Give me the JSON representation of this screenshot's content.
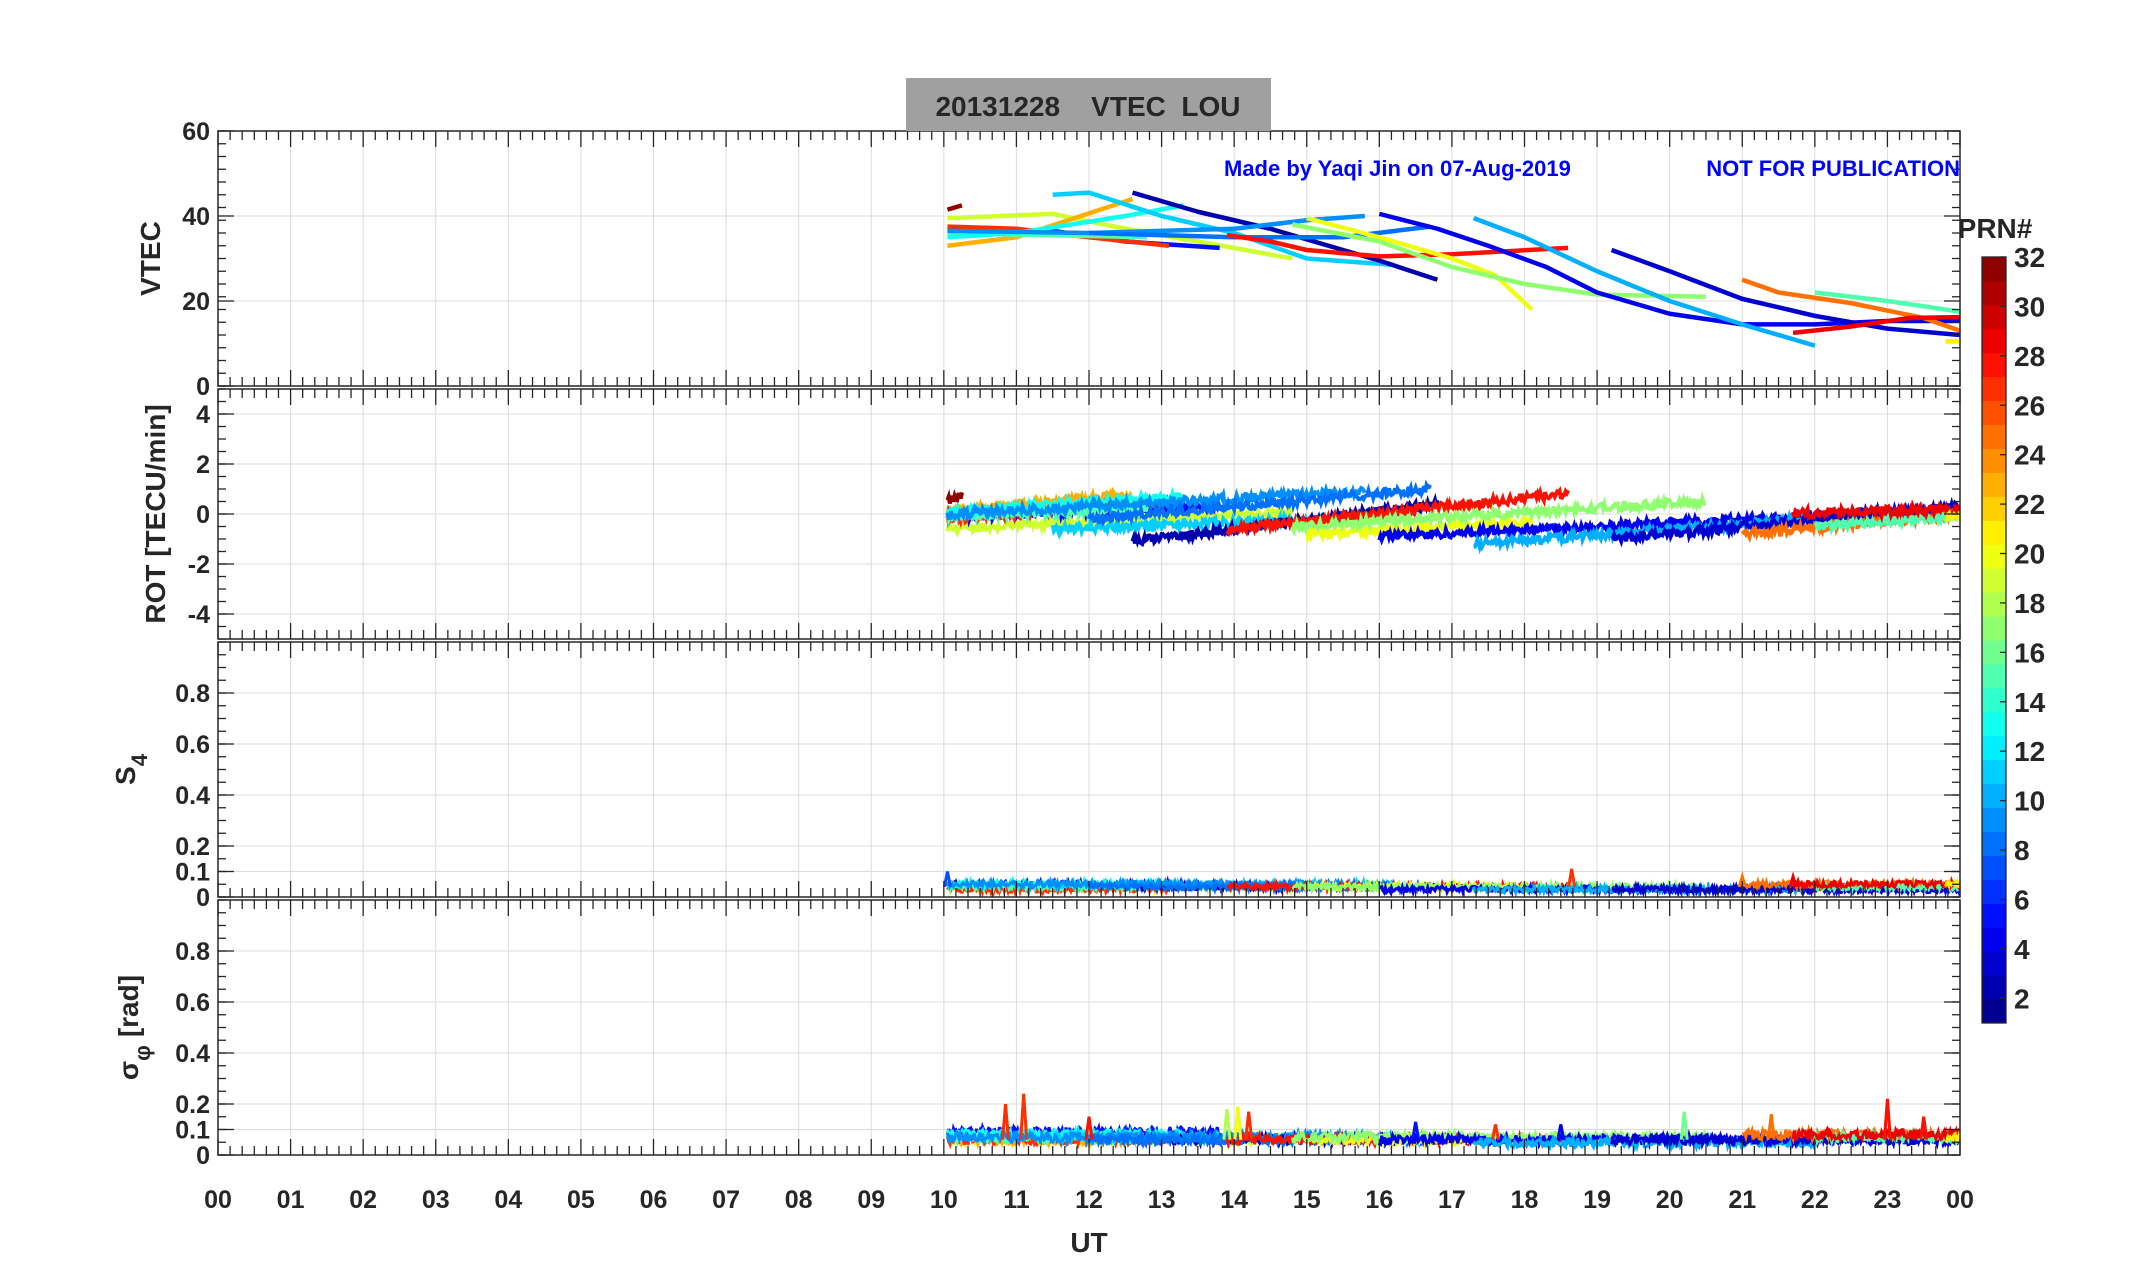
{
  "chart_data": {
    "type": "line",
    "title": "20131228    VTEC  LOU",
    "annotation_left": "Made by Yaqi Jin on 07-Aug-2019",
    "annotation_right": "NOT FOR PUBLICATION",
    "xlabel": "UT",
    "xlim": [
      0,
      24
    ],
    "xticks": [
      "00",
      "01",
      "02",
      "03",
      "04",
      "05",
      "06",
      "07",
      "08",
      "09",
      "10",
      "11",
      "12",
      "13",
      "14",
      "15",
      "16",
      "17",
      "18",
      "19",
      "20",
      "21",
      "22",
      "23",
      "00"
    ],
    "colorbar": {
      "label": "PRN#",
      "range": [
        1,
        32
      ],
      "ticks": [
        "2",
        "4",
        "6",
        "8",
        "10",
        "12",
        "14",
        "16",
        "18",
        "20",
        "22",
        "24",
        "26",
        "28",
        "30",
        "32"
      ],
      "colormap": "jet"
    },
    "panels": [
      {
        "ylabel": "VTEC",
        "ylim": [
          0,
          60
        ],
        "yticks": [
          "0",
          "20",
          "40",
          "60"
        ],
        "ytick_values": [
          0,
          20,
          40,
          60
        ]
      },
      {
        "ylabel": "ROT [TECU/min]",
        "ylim": [
          -5,
          5
        ],
        "yticks": [
          "-4",
          "-2",
          "0",
          "2",
          "4"
        ],
        "ytick_values": [
          -4,
          -2,
          0,
          2,
          4
        ]
      },
      {
        "ylabel": "S",
        "ylabel_sub": "4",
        "ylim": [
          0,
          1
        ],
        "yticks": [
          "0",
          "0.1",
          "0.2",
          "0.4",
          "0.6",
          "0.8"
        ],
        "ytick_values": [
          0,
          0.1,
          0.2,
          0.4,
          0.6,
          0.8
        ]
      },
      {
        "ylabel": "σ",
        "ylabel_sub": "φ",
        "ylabel_unit": "[rad]",
        "ylim": [
          0,
          1
        ],
        "yticks": [
          "0",
          "0.1",
          "0.2",
          "0.4",
          "0.6",
          "0.8"
        ],
        "ytick_values": [
          0,
          0.1,
          0.2,
          0.4,
          0.6,
          0.8
        ]
      }
    ],
    "series": [
      {
        "prn": 32,
        "t": [
          10.05,
          10.25
        ],
        "vtec": [
          41.5,
          42.5
        ],
        "rot": [
          0.5,
          0.7
        ],
        "s4": 0.05,
        "sigma": 0.08
      },
      {
        "prn": 19,
        "t": [
          10.05,
          11.5,
          12.5,
          13.5,
          14.8
        ],
        "vtec": [
          39.5,
          40.5,
          37,
          34,
          30
        ],
        "rot": [
          -0.6,
          0.1
        ],
        "s4": 0.04,
        "sigma": 0.06
      },
      {
        "prn": 23,
        "t": [
          10.05,
          11,
          12.6
        ],
        "vtec": [
          33,
          35,
          44
        ],
        "rot": [
          0.1,
          0.8
        ],
        "s4": 0.04,
        "sigma": 0.06
      },
      {
        "prn": 5,
        "t": [
          10.05,
          11.5,
          12.5,
          13.8
        ],
        "vtec": [
          37,
          36.5,
          34,
          32.5
        ],
        "rot": [
          -0.1,
          0.3
        ],
        "s4": 0.05,
        "sigma": 0.09
      },
      {
        "prn": 27,
        "t": [
          10.05,
          11,
          12,
          13.1
        ],
        "vtec": [
          37.5,
          37,
          35,
          33
        ],
        "rot": [
          -0.2,
          0.5
        ],
        "s4": 0.03,
        "sigma": 0.06
      },
      {
        "prn": 15,
        "t": [
          10.05,
          12.8
        ],
        "vtec": [
          36,
          35
        ],
        "rot": [
          -0.1,
          0.2
        ],
        "s4": 0.04,
        "sigma": 0.07
      },
      {
        "prn": 13,
        "t": [
          10.05,
          11,
          12.5,
          13.3
        ],
        "vtec": [
          35,
          36,
          40,
          42.5
        ],
        "rot": [
          0.1,
          0.7
        ],
        "s4": 0.05,
        "sigma": 0.08
      },
      {
        "prn": 11,
        "t": [
          11.5,
          12,
          13,
          14,
          15,
          16.2
        ],
        "vtec": [
          45,
          45.5,
          40,
          36,
          30,
          28.5
        ],
        "rot": [
          -0.6,
          -0.1
        ],
        "s4": 0.05,
        "sigma": 0.07
      },
      {
        "prn": 2,
        "t": [
          12.6,
          13.5,
          14.5,
          15.5,
          16,
          16.8
        ],
        "vtec": [
          45.5,
          41,
          37,
          32,
          29.5,
          25
        ],
        "rot": [
          -1.1,
          0.4
        ],
        "s4": 0.04,
        "sigma": 0.06
      },
      {
        "prn": 9,
        "t": [
          10.05,
          12,
          14,
          15,
          15.8
        ],
        "vtec": [
          36.5,
          36,
          37,
          39,
          40
        ],
        "rot": [
          0.0,
          0.9
        ],
        "s4": 0.05,
        "sigma": 0.07
      },
      {
        "prn": 8,
        "t": [
          12,
          14,
          15.5,
          16.7
        ],
        "vtec": [
          36,
          35,
          35,
          37.5
        ],
        "rot": [
          -0.2,
          1.0
        ],
        "s4": 0.04,
        "sigma": 0.06
      },
      {
        "prn": 28,
        "t": [
          13.9,
          14.5,
          15,
          16,
          17,
          18.6
        ],
        "vtec": [
          35.5,
          34,
          32,
          30.5,
          31,
          32.5
        ],
        "rot": [
          -0.6,
          0.8
        ],
        "s4": 0.04,
        "sigma": 0.06
      },
      {
        "prn": 20,
        "t": [
          15,
          16,
          17,
          17.6,
          18.1
        ],
        "vtec": [
          39.5,
          35,
          30,
          26,
          18
        ],
        "rot": [
          -0.8,
          -0.3
        ],
        "s4": 0.04,
        "sigma": 0.06
      },
      {
        "prn": 17,
        "t": [
          14.8,
          16,
          17,
          18,
          19,
          20.5
        ],
        "vtec": [
          38,
          34,
          28,
          24,
          21.5,
          21
        ],
        "rot": [
          -0.5,
          0.5
        ],
        "s4": 0.04,
        "sigma": 0.07
      },
      {
        "prn": 4,
        "t": [
          16,
          16.8,
          17.5,
          18.3,
          19,
          20,
          21,
          22,
          23,
          24
        ],
        "vtec": [
          40.5,
          37,
          33,
          28,
          22,
          17,
          14.5,
          14.5,
          15.3,
          15.3
        ],
        "rot": [
          -0.9,
          0.2
        ],
        "s4": 0.03,
        "sigma": 0.06
      },
      {
        "prn": 10,
        "t": [
          17.3,
          18,
          19,
          20,
          21,
          22
        ],
        "vtec": [
          39.5,
          35,
          27,
          20,
          14.5,
          9.5
        ],
        "rot": [
          -1.2,
          -0.2
        ],
        "s4": 0.03,
        "sigma": 0.05
      },
      {
        "prn": 3,
        "t": [
          19.2,
          20,
          21,
          22,
          23,
          24
        ],
        "vtec": [
          32,
          27,
          20.5,
          16.5,
          13.5,
          12
        ],
        "rot": [
          -1.0,
          0.3
        ],
        "s4": 0.03,
        "sigma": 0.06
      },
      {
        "prn": 25,
        "t": [
          21,
          21.5,
          22.5,
          23.5,
          24
        ],
        "vtec": [
          25,
          22,
          19.5,
          16,
          13
        ],
        "rot": [
          -0.8,
          0.0
        ],
        "s4": 0.05,
        "sigma": 0.08
      },
      {
        "prn": 15,
        "t": [
          22,
          23,
          24
        ],
        "vtec": [
          22,
          20,
          17.5
        ],
        "rot": [
          -0.5,
          -0.1
        ],
        "s4": 0.04,
        "sigma": 0.07
      },
      {
        "prn": 29,
        "t": [
          21.7,
          22.5,
          23.3,
          24
        ],
        "vtec": [
          12.5,
          14,
          16,
          16.2
        ],
        "rot": [
          0.0,
          0.2
        ],
        "s4": 0.05,
        "sigma": 0.08
      },
      {
        "prn": 21,
        "t": [
          23.8,
          24
        ],
        "vtec": [
          10.5,
          10.5
        ],
        "rot": [
          -0.1,
          0.0
        ],
        "s4": 0.05,
        "sigma": 0.07
      }
    ],
    "sigma_spikes": [
      {
        "t": 10.85,
        "value": 0.2,
        "prn": 27
      },
      {
        "t": 11.1,
        "value": 0.24,
        "prn": 27
      },
      {
        "t": 12.0,
        "value": 0.15,
        "prn": 28
      },
      {
        "t": 13.9,
        "value": 0.18,
        "prn": 18
      },
      {
        "t": 14.05,
        "value": 0.19,
        "prn": 20
      },
      {
        "t": 14.2,
        "value": 0.17,
        "prn": 27
      },
      {
        "t": 16.5,
        "value": 0.13,
        "prn": 5
      },
      {
        "t": 17.6,
        "value": 0.12,
        "prn": 27
      },
      {
        "t": 18.5,
        "value": 0.12,
        "prn": 4
      },
      {
        "t": 20.2,
        "value": 0.17,
        "prn": 16
      },
      {
        "t": 21.4,
        "value": 0.16,
        "prn": 25
      },
      {
        "t": 23.0,
        "value": 0.22,
        "prn": 28
      },
      {
        "t": 23.5,
        "value": 0.15,
        "prn": 28
      }
    ],
    "s4_spikes": [
      {
        "t": 10.05,
        "value": 0.1,
        "prn": 7
      },
      {
        "t": 18.65,
        "value": 0.11,
        "prn": 27
      },
      {
        "t": 21.0,
        "value": 0.08,
        "prn": 25
      },
      {
        "t": 21.7,
        "value": 0.08,
        "prn": 29
      }
    ]
  }
}
